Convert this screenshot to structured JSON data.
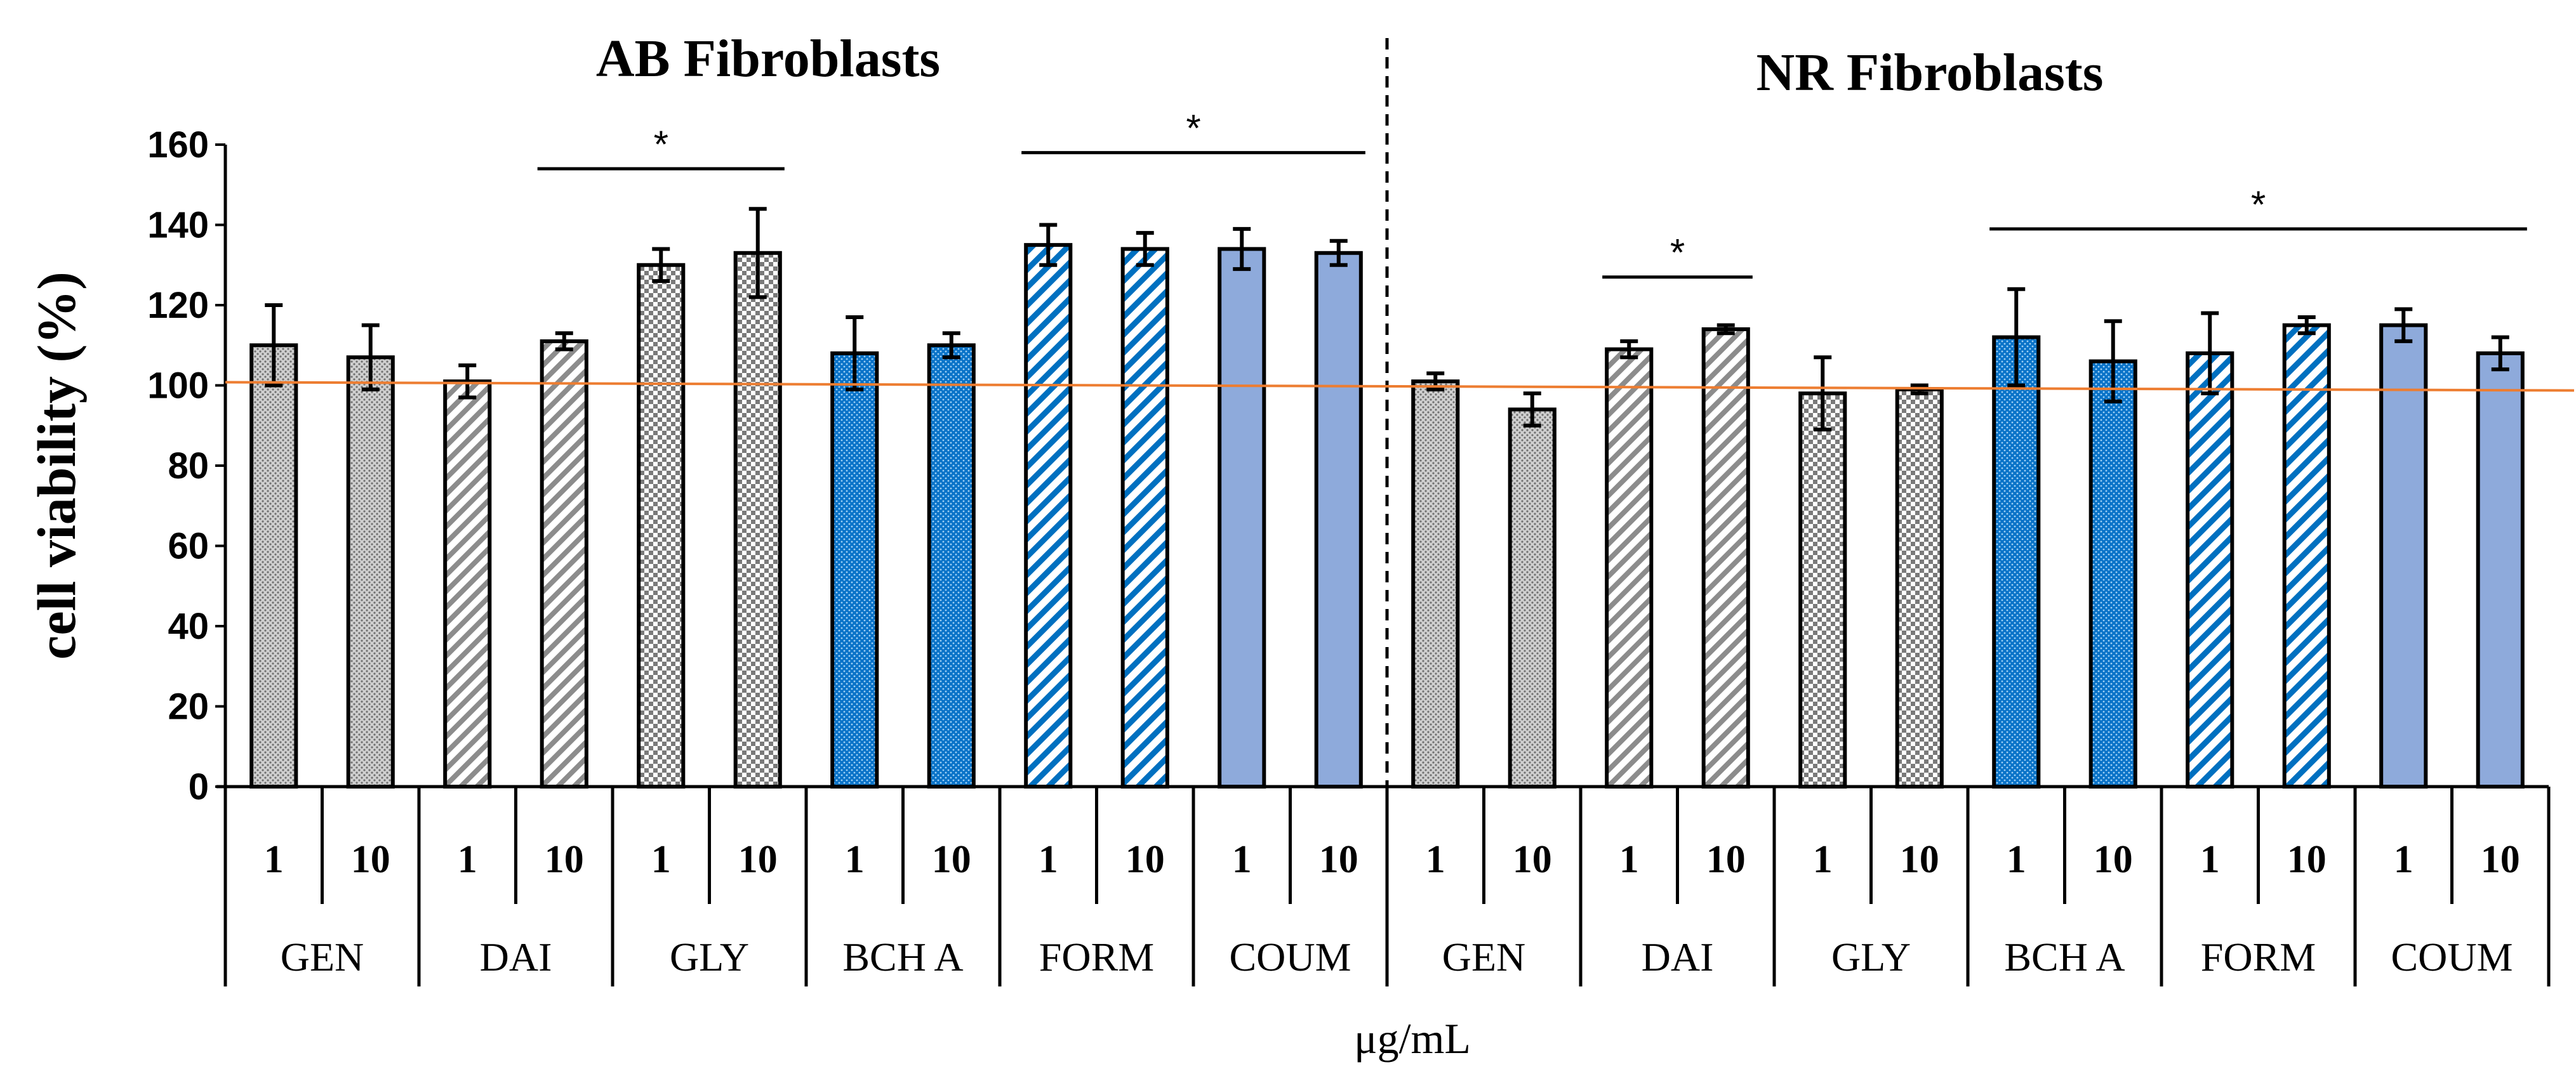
{
  "chart_data": {
    "type": "bar",
    "ylabel": "cell viability (%)",
    "xlabel": "μg/mL",
    "ylim": [
      0,
      160
    ],
    "yticks": [
      0,
      20,
      40,
      60,
      80,
      100,
      120,
      140,
      160
    ],
    "reference_line": 100,
    "panels": [
      {
        "title": "AB Fibroblasts",
        "groups": [
          {
            "name": "GEN",
            "pattern": "gray-dots",
            "bars": [
              {
                "conc": "1",
                "value": 110,
                "err": 10
              },
              {
                "conc": "10",
                "value": 107,
                "err": 8
              }
            ]
          },
          {
            "name": "DAI",
            "pattern": "gray-diagonal",
            "bars": [
              {
                "conc": "1",
                "value": 101,
                "err": 4
              },
              {
                "conc": "10",
                "value": 111,
                "err": 2
              }
            ]
          },
          {
            "name": "GLY",
            "pattern": "gray-checker",
            "bars": [
              {
                "conc": "1",
                "value": 130,
                "err": 4
              },
              {
                "conc": "10",
                "value": 133,
                "err": 11
              }
            ]
          },
          {
            "name": "BCH A",
            "pattern": "blue-dots",
            "bars": [
              {
                "conc": "1",
                "value": 108,
                "err": 9
              },
              {
                "conc": "10",
                "value": 110,
                "err": 3
              }
            ]
          },
          {
            "name": "FORM",
            "pattern": "blue-diagonal",
            "bars": [
              {
                "conc": "1",
                "value": 135,
                "err": 5
              },
              {
                "conc": "10",
                "value": 134,
                "err": 4
              }
            ]
          },
          {
            "name": "COUM",
            "pattern": "blue-solid",
            "bars": [
              {
                "conc": "1",
                "value": 134,
                "err": 5
              },
              {
                "conc": "10",
                "value": 133,
                "err": 3
              }
            ]
          }
        ],
        "significance": [
          {
            "label": "*",
            "from_group": 1,
            "from_bar": 1,
            "to_group": 2,
            "to_bar": 1,
            "level": 154
          },
          {
            "label": "*",
            "from_group": 4,
            "from_bar": 0,
            "to_group": 5,
            "to_bar": 1,
            "level": 158
          }
        ]
      },
      {
        "title": "NR Fibroblasts",
        "groups": [
          {
            "name": "GEN",
            "pattern": "gray-dots",
            "bars": [
              {
                "conc": "1",
                "value": 101,
                "err": 2
              },
              {
                "conc": "10",
                "value": 94,
                "err": 4
              }
            ]
          },
          {
            "name": "DAI",
            "pattern": "gray-diagonal",
            "bars": [
              {
                "conc": "1",
                "value": 109,
                "err": 2
              },
              {
                "conc": "10",
                "value": 114,
                "err": 1
              }
            ]
          },
          {
            "name": "GLY",
            "pattern": "gray-checker",
            "bars": [
              {
                "conc": "1",
                "value": 98,
                "err": 9
              },
              {
                "conc": "10",
                "value": 99,
                "err": 1
              }
            ]
          },
          {
            "name": "BCH A",
            "pattern": "blue-dots",
            "bars": [
              {
                "conc": "1",
                "value": 112,
                "err": 12
              },
              {
                "conc": "10",
                "value": 106,
                "err": 10
              }
            ]
          },
          {
            "name": "FORM",
            "pattern": "blue-diagonal",
            "bars": [
              {
                "conc": "1",
                "value": 108,
                "err": 10
              },
              {
                "conc": "10",
                "value": 115,
                "err": 2
              }
            ]
          },
          {
            "name": "COUM",
            "pattern": "blue-solid",
            "bars": [
              {
                "conc": "1",
                "value": 115,
                "err": 4
              },
              {
                "conc": "10",
                "value": 108,
                "err": 4
              }
            ]
          }
        ],
        "significance": [
          {
            "label": "*",
            "from_group": 1,
            "from_bar": 0,
            "to_group": 1,
            "to_bar": 1,
            "level": 127
          },
          {
            "label": "*",
            "from_group": 3,
            "from_bar": 0,
            "to_group": 5,
            "to_bar": 1,
            "level": 139
          }
        ]
      }
    ],
    "colors": {
      "gray": "#c0c0c0",
      "gray_dark": "#8a8a8a",
      "blue": "#0070c0",
      "blue_solid": "#8eaadb",
      "reference_line": "#ed7d31",
      "axis": "#000000"
    }
  }
}
